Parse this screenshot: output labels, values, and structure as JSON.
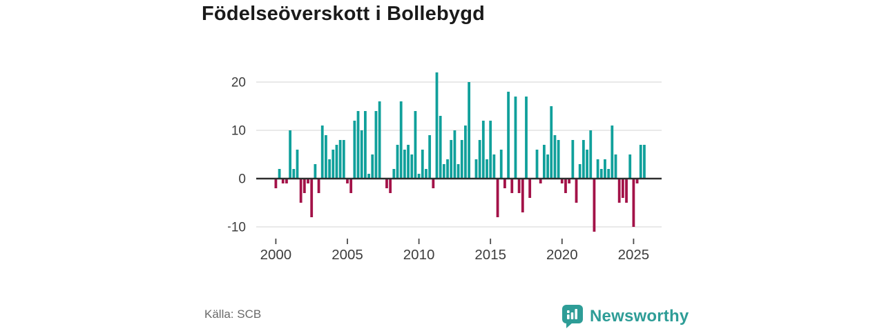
{
  "title": "Födelseöverskott i Bollebygd",
  "footer": {
    "source": "Källa: SCB",
    "brand": "Newsworthy"
  },
  "colors": {
    "positive": "#10a09b",
    "negative": "#a31248",
    "brand": "#2e9d97",
    "axis": "#2d2d2d",
    "grid": "#dcdcdc",
    "tick": "#4a4a4a",
    "text": "#3d3d3d",
    "title_text": "#1a1a1a",
    "source_text": "#696969"
  },
  "chart_data": {
    "type": "bar",
    "title": "Födelseöverskott i Bollebygd",
    "period": "quarterly",
    "start_year": 2000,
    "start_quarter": 1,
    "x_tick_labels": [
      "2000",
      "2005",
      "2010",
      "2015",
      "2020",
      "2025"
    ],
    "x_tick_years": [
      2000,
      2005,
      2010,
      2015,
      2020,
      2025
    ],
    "y_ticks": [
      20,
      10,
      0,
      -10
    ],
    "ylim": [
      -12,
      23
    ],
    "grid": true,
    "legend": false,
    "positive_color": "#10a09b",
    "negative_color": "#a31248",
    "values": [
      -2,
      2,
      -1,
      -1,
      10,
      2,
      6,
      -5,
      -3,
      -1,
      -8,
      3,
      -3,
      11,
      9,
      4,
      6,
      7,
      8,
      8,
      -1,
      -3,
      12,
      14,
      10,
      14,
      1,
      5,
      14,
      16,
      0,
      -2,
      -3,
      2,
      7,
      16,
      6,
      7,
      5,
      14,
      1,
      6,
      2,
      9,
      -2,
      22,
      13,
      3,
      4,
      8,
      10,
      3,
      8,
      11,
      20,
      0,
      4,
      8,
      12,
      4,
      12,
      5,
      -8,
      6,
      -2,
      18,
      -3,
      17,
      -3,
      -7,
      17,
      -4,
      0,
      6,
      -1,
      7,
      5,
      15,
      9,
      8,
      -1,
      -3,
      -1,
      8,
      -5,
      3,
      8,
      6,
      10,
      -11,
      4,
      2,
      4,
      2,
      11,
      5,
      -5,
      -4,
      -5,
      5,
      -10,
      -1,
      7,
      7
    ]
  }
}
